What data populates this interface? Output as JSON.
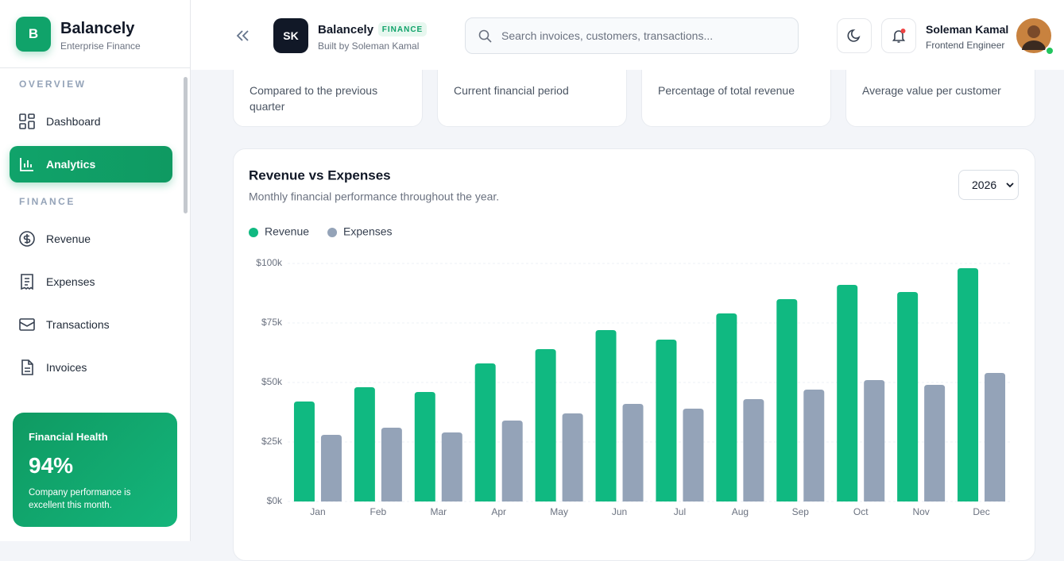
{
  "sidebar": {
    "brand": {
      "logo": "B",
      "name": "Balancely",
      "tagline": "Enterprise Finance"
    },
    "sections": [
      {
        "title": "OVERVIEW",
        "items": [
          "Dashboard",
          "Analytics"
        ]
      },
      {
        "title": "FINANCE",
        "items": [
          "Revenue",
          "Expenses",
          "Transactions",
          "Invoices"
        ]
      }
    ],
    "health": {
      "title": "Financial Health",
      "value": "94%",
      "note": "Company performance is excellent this month."
    }
  },
  "header": {
    "avatar": "SK",
    "name": "Balancely",
    "badge": "FINANCE",
    "byline": "Built by Soleman Kamal",
    "search_placeholder": "Search invoices, customers, transactions...",
    "user": {
      "name": "Soleman Kamal",
      "role": "Frontend Engineer"
    }
  },
  "cards": [
    "Compared to the previous quarter",
    "Current financial period",
    "Percentage of total revenue",
    "Average value per customer"
  ],
  "chart_controls": {
    "year": "2026"
  },
  "chart_data": {
    "type": "bar",
    "title": "Revenue vs Expenses",
    "subtitle": "Monthly financial performance throughout the year.",
    "categories": [
      "Jan",
      "Feb",
      "Mar",
      "Apr",
      "May",
      "Jun",
      "Jul",
      "Aug",
      "Sep",
      "Oct",
      "Nov",
      "Dec"
    ],
    "series": [
      {
        "name": "Revenue",
        "color": "#10b981",
        "values": [
          42000,
          48000,
          46000,
          58000,
          64000,
          72000,
          68000,
          79000,
          85000,
          91000,
          88000,
          98000
        ]
      },
      {
        "name": "Expenses",
        "color": "#94a3b8",
        "values": [
          28000,
          31000,
          29000,
          34000,
          37000,
          41000,
          39000,
          43000,
          47000,
          51000,
          49000,
          54000
        ]
      }
    ],
    "ylim": [
      0,
      100000
    ],
    "yticks": [
      {
        "value": 0,
        "label": "$0k"
      },
      {
        "value": 25000,
        "label": "$25k"
      },
      {
        "value": 50000,
        "label": "$50k"
      },
      {
        "value": 75000,
        "label": "$75k"
      },
      {
        "value": 100000,
        "label": "$100k"
      }
    ],
    "grid": true
  }
}
